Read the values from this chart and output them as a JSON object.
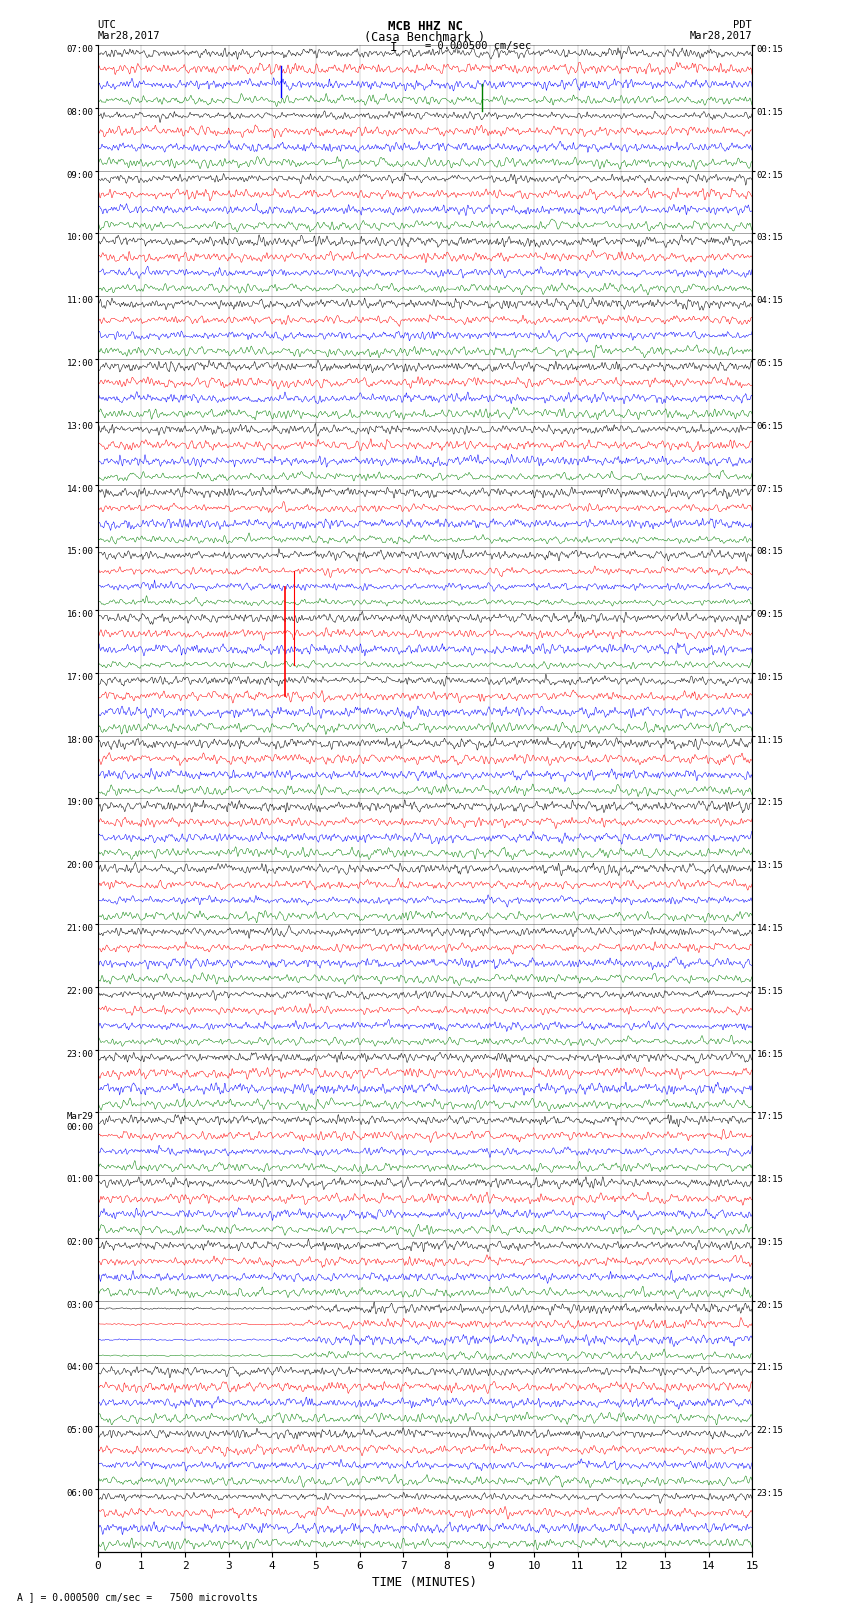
{
  "title_line1": "MCB HHZ NC",
  "title_line2": "(Casa Benchmark )",
  "title_line3": "I = 0.000500 cm/sec",
  "label_utc": "UTC",
  "label_utc_date": "Mar28,2017",
  "label_pdt": "PDT",
  "label_pdt_date": "Mar28,2017",
  "xlabel": "TIME (MINUTES)",
  "footnote": "A ] = 0.000500 cm/sec =   7500 microvolts",
  "left_times": [
    "07:00",
    "08:00",
    "09:00",
    "10:00",
    "11:00",
    "12:00",
    "13:00",
    "14:00",
    "15:00",
    "16:00",
    "17:00",
    "18:00",
    "19:00",
    "20:00",
    "21:00",
    "22:00",
    "23:00",
    "Mar29\n00:00",
    "01:00",
    "02:00",
    "03:00",
    "04:00",
    "05:00",
    "06:00"
  ],
  "right_times": [
    "00:15",
    "01:15",
    "02:15",
    "03:15",
    "04:15",
    "05:15",
    "06:15",
    "07:15",
    "08:15",
    "09:15",
    "10:15",
    "11:15",
    "12:15",
    "13:15",
    "14:15",
    "15:15",
    "16:15",
    "17:15",
    "18:15",
    "19:15",
    "20:15",
    "21:15",
    "22:15",
    "23:15"
  ],
  "num_rows": 24,
  "traces_per_row": 4,
  "colors": [
    "black",
    "red",
    "blue",
    "green"
  ],
  "bg_color": "#ffffff",
  "xmin": 0,
  "xmax": 15,
  "xticks": [
    0,
    1,
    2,
    3,
    4,
    5,
    6,
    7,
    8,
    9,
    10,
    11,
    12,
    13,
    14,
    15
  ]
}
